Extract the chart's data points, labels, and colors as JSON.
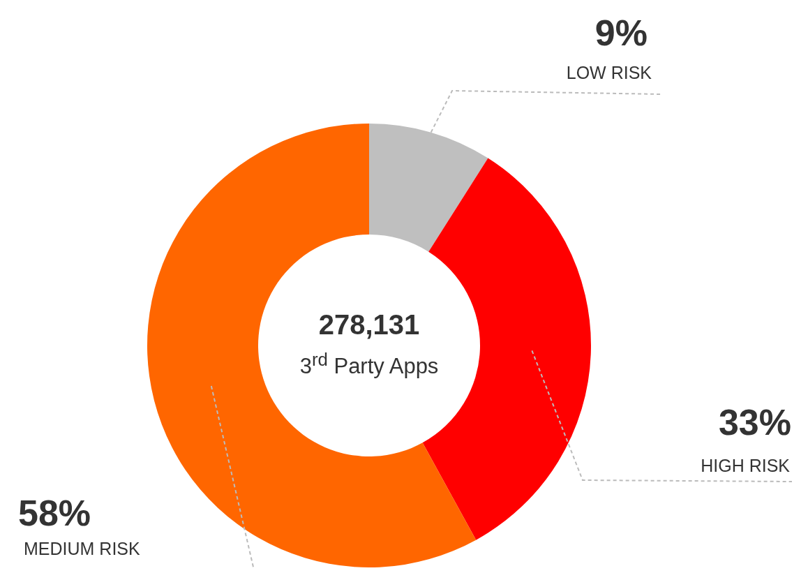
{
  "chart_data": {
    "type": "donut",
    "categories": [
      "LOW RISK",
      "HIGH RISK",
      "MEDIUM RISK"
    ],
    "values": [
      9,
      33,
      58
    ],
    "colors": [
      "#bfbfbf",
      "#ff0000",
      "#ff6600"
    ],
    "value_labels": [
      "9%",
      "33%",
      "58%"
    ],
    "legend": false,
    "annotations": [
      "278,131",
      "3$^{rd}$ Party Apps"
    ]
  }
}
